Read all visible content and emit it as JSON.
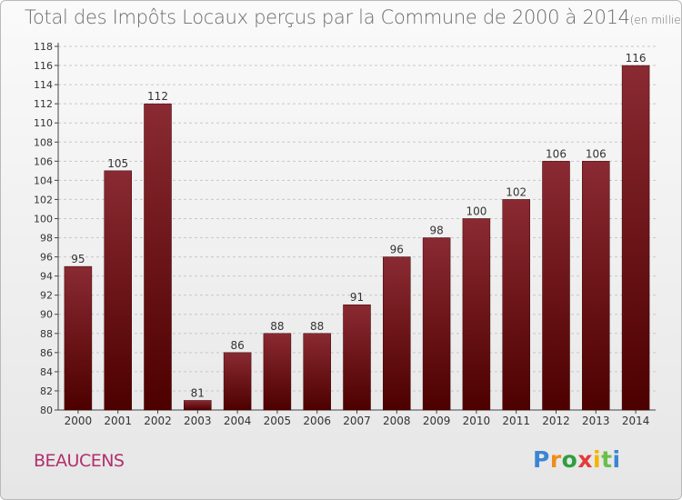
{
  "header": {
    "title": "Total des Impôts Locaux perçus par la Commune de 2000 à 2014",
    "unit": "(en milliers d'€)"
  },
  "footer": {
    "commune": "BEAUCENS",
    "logo": "Proxiti"
  },
  "colors": {
    "bar_top": "#8a2a32",
    "bar_bottom": "#4d0000",
    "axis": "#444444",
    "grid": "#c8c8c8"
  },
  "chart_data": {
    "type": "bar",
    "title": "Total des Impôts Locaux perçus par la Commune de 2000 à 2014",
    "subtitle": "(en milliers d'€)",
    "xlabel": "",
    "ylabel": "",
    "categories": [
      "2000",
      "2001",
      "2002",
      "2003",
      "2004",
      "2005",
      "2006",
      "2007",
      "2008",
      "2009",
      "2010",
      "2011",
      "2012",
      "2013",
      "2014"
    ],
    "values": [
      95,
      105,
      112,
      81,
      86,
      88,
      88,
      91,
      96,
      98,
      100,
      102,
      106,
      106,
      116
    ],
    "ylim": [
      80,
      118
    ],
    "yticks": [
      80,
      82,
      84,
      86,
      88,
      90,
      92,
      94,
      96,
      98,
      100,
      102,
      104,
      106,
      108,
      110,
      112,
      114,
      116,
      118
    ],
    "grid": true,
    "data_labels": true
  }
}
